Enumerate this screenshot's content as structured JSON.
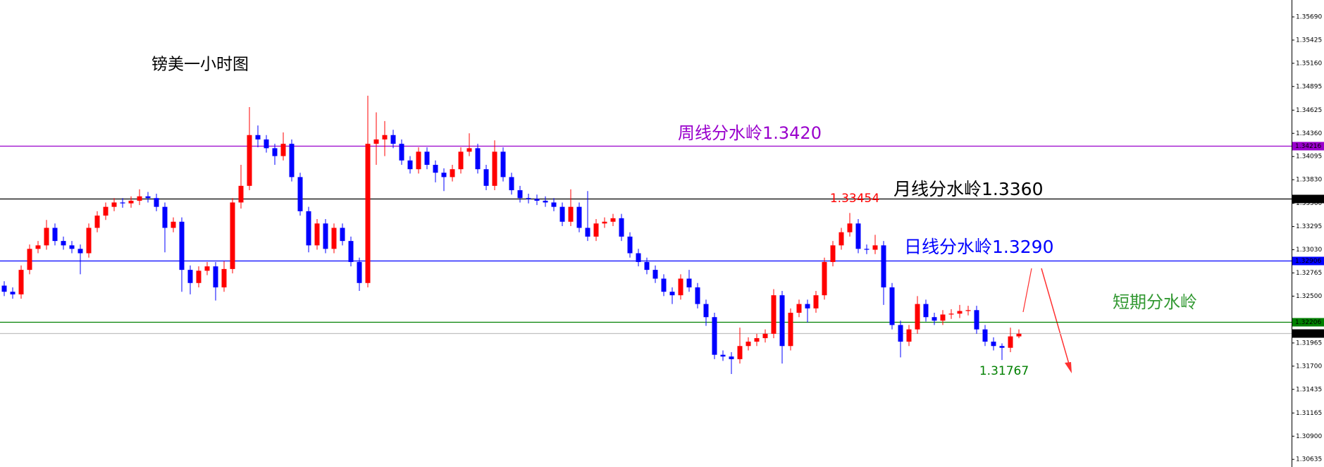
{
  "chart_data": {
    "type": "candlestick",
    "title": "镑美一小时图",
    "up_color": "#ff0000",
    "down_color": "#0000ff",
    "ylim": [
      1.30548,
      1.35883
    ],
    "yticks": [
      {
        "value": 1.3569,
        "label": "1.35690"
      },
      1.35425,
      {
        "value": 1.3516,
        "label": "1.35160"
      },
      1.34895,
      1.34625,
      {
        "value": 1.3436,
        "label": "1.34360"
      },
      1.34095,
      {
        "value": 1.3383,
        "label": "1.33830"
      },
      {
        "value": 1.3356,
        "label": "1.33560"
      },
      1.33295,
      {
        "value": 1.3303,
        "label": "1.33030"
      },
      1.32765,
      {
        "value": 1.325,
        "label": "1.32500"
      },
      1.31965,
      {
        "value": 1.317,
        "label": "1.31700"
      },
      1.31435,
      1.31165,
      {
        "value": 1.309,
        "label": "1.30900"
      },
      1.30635
    ],
    "levels": [
      {
        "value": 1.34216,
        "color": "#9900cc"
      },
      {
        "value": 1.33612,
        "color": "#000000"
      },
      {
        "value": 1.32906,
        "color": "#0000ff"
      },
      {
        "value": 1.32206,
        "color": "#008000"
      },
      {
        "value": 1.32076,
        "color": "#c0c0c0"
      }
    ],
    "annotations": [
      {
        "text": "周线分水岭1.3420",
        "color": "#9900cc"
      },
      {
        "text": "月线分水岭1.3360",
        "color": "#000000"
      },
      {
        "text": "日线分水岭1.3290",
        "color": "#0000ff"
      },
      {
        "text": "短期分水岭",
        "color": "#339933"
      }
    ],
    "price_labels": [
      {
        "value": 1.33454,
        "color": "#ff0000"
      },
      {
        "value": 1.31767,
        "color": "#008000"
      }
    ],
    "open": [
      1.3262,
      1.3255,
      1.3252,
      1.328,
      1.3304,
      1.3308,
      1.3328,
      1.3313,
      1.3308,
      1.3304,
      1.3299,
      1.3328,
      1.3342,
      1.3352,
      1.3357,
      1.3356,
      1.3359,
      1.3364,
      1.3362,
      1.3352,
      1.3328,
      1.3335,
      1.328,
      1.3265,
      1.3279,
      1.3284,
      1.326,
      1.3281,
      1.3357,
      1.3376,
      1.3434,
      1.3429,
      1.3419,
      1.341,
      1.3424,
      1.3386,
      1.3347,
      1.3308,
      1.3333,
      1.3304,
      1.3328,
      1.3313,
      1.3289,
      1.3265,
      1.3424,
      1.3429,
      1.3434,
      1.3424,
      1.3405,
      1.3395,
      1.3415,
      1.34,
      1.3391,
      1.3386,
      1.3395,
      1.3415,
      1.3419,
      1.3395,
      1.3376,
      1.3415,
      1.3386,
      1.3371,
      1.3362,
      1.3361,
      1.3359,
      1.3357,
      1.3352,
      1.3335,
      1.3352,
      1.3328,
      1.3318,
      1.3333,
      1.3335,
      1.3339,
      1.3318,
      1.3299,
      1.3289,
      1.328,
      1.327,
      1.3255,
      1.3251,
      1.327,
      1.326,
      1.3241,
      1.3226,
      1.3183,
      1.3181,
      1.3178,
      1.3193,
      1.3198,
      1.3202,
      1.3207,
      1.3251,
      1.3193,
      1.3231,
      1.3241,
      1.3236,
      1.3251,
      1.3289,
      1.3308,
      1.3323,
      1.3333,
      1.3304,
      1.3303,
      1.3308,
      1.326,
      1.3217,
      1.3198,
      1.3212,
      1.3241,
      1.3226,
      1.3222,
      1.3229,
      1.323,
      1.3233,
      1.3234,
      1.3212,
      1.3198,
      1.3193,
      1.3191,
      1.3204
    ],
    "high": [
      1.3267,
      1.326,
      1.3285,
      1.3309,
      1.3313,
      1.3337,
      1.3333,
      1.3318,
      1.3313,
      1.3309,
      1.3333,
      1.3347,
      1.3357,
      1.3362,
      1.3362,
      1.3364,
      1.3372,
      1.3369,
      1.3367,
      1.3357,
      1.334,
      1.334,
      1.3285,
      1.3284,
      1.3289,
      1.3289,
      1.329,
      1.3362,
      1.34,
      1.3466,
      1.3445,
      1.3434,
      1.3424,
      1.3437,
      1.3429,
      1.3391,
      1.3352,
      1.3338,
      1.3338,
      1.3333,
      1.3333,
      1.3318,
      1.3294,
      1.3479,
      1.346,
      1.345,
      1.344,
      1.3429,
      1.341,
      1.342,
      1.342,
      1.3405,
      1.3396,
      1.34,
      1.342,
      1.3436,
      1.3424,
      1.34,
      1.3428,
      1.342,
      1.3391,
      1.3376,
      1.3367,
      1.3366,
      1.3364,
      1.3362,
      1.3357,
      1.3372,
      1.3357,
      1.337,
      1.3338,
      1.334,
      1.3344,
      1.3344,
      1.3323,
      1.3304,
      1.3294,
      1.3285,
      1.3275,
      1.326,
      1.3275,
      1.328,
      1.3265,
      1.3246,
      1.3231,
      1.3188,
      1.3186,
      1.3214,
      1.3203,
      1.3207,
      1.3212,
      1.3258,
      1.3256,
      1.3236,
      1.3246,
      1.3246,
      1.3256,
      1.3294,
      1.3313,
      1.3328,
      1.3345,
      1.3338,
      1.3309,
      1.332,
      1.3313,
      1.3265,
      1.3222,
      1.3217,
      1.325,
      1.3246,
      1.3231,
      1.3234,
      1.3235,
      1.324,
      1.3239,
      1.3239,
      1.3217,
      1.3203,
      1.3196,
      1.3214,
      1.3212
    ],
    "low": [
      1.325,
      1.3247,
      1.3247,
      1.3275,
      1.3299,
      1.3303,
      1.3308,
      1.3303,
      1.3299,
      1.3275,
      1.3294,
      1.3323,
      1.3337,
      1.3347,
      1.3351,
      1.3351,
      1.3354,
      1.3357,
      1.3347,
      1.33,
      1.3323,
      1.3255,
      1.3252,
      1.326,
      1.3274,
      1.3245,
      1.3255,
      1.3276,
      1.335,
      1.3371,
      1.342,
      1.3414,
      1.34,
      1.3405,
      1.3381,
      1.3342,
      1.33,
      1.3303,
      1.3299,
      1.3299,
      1.3308,
      1.3284,
      1.3256,
      1.326,
      1.34,
      1.341,
      1.3419,
      1.34,
      1.339,
      1.339,
      1.3395,
      1.338,
      1.337,
      1.3381,
      1.339,
      1.341,
      1.339,
      1.3371,
      1.3371,
      1.3381,
      1.3366,
      1.3357,
      1.3356,
      1.3354,
      1.3352,
      1.3347,
      1.333,
      1.333,
      1.3323,
      1.3313,
      1.3313,
      1.3328,
      1.333,
      1.3313,
      1.3294,
      1.3284,
      1.3275,
      1.3265,
      1.325,
      1.3241,
      1.3246,
      1.3255,
      1.3236,
      1.3216,
      1.3178,
      1.3176,
      1.3161,
      1.3173,
      1.3188,
      1.3193,
      1.3197,
      1.3202,
      1.3173,
      1.3188,
      1.3226,
      1.322,
      1.3231,
      1.3246,
      1.3284,
      1.3303,
      1.3318,
      1.3299,
      1.3298,
      1.3298,
      1.324,
      1.3212,
      1.318,
      1.3193,
      1.3207,
      1.3221,
      1.3217,
      1.3217,
      1.3224,
      1.3225,
      1.3228,
      1.3207,
      1.3193,
      1.3188,
      1.3177,
      1.3186,
      1.3202
    ],
    "close": [
      1.3255,
      1.3252,
      1.328,
      1.3304,
      1.3308,
      1.3328,
      1.3313,
      1.3308,
      1.3304,
      1.3299,
      1.3328,
      1.3342,
      1.3352,
      1.3357,
      1.3356,
      1.3359,
      1.3364,
      1.3362,
      1.3352,
      1.3328,
      1.3335,
      1.328,
      1.3265,
      1.3279,
      1.3284,
      1.326,
      1.3281,
      1.3357,
      1.3376,
      1.3434,
      1.3429,
      1.3419,
      1.341,
      1.3424,
      1.3386,
      1.3347,
      1.3308,
      1.3333,
      1.3304,
      1.3328,
      1.3313,
      1.3289,
      1.3265,
      1.3424,
      1.3429,
      1.3434,
      1.3424,
      1.3405,
      1.3395,
      1.3415,
      1.34,
      1.3391,
      1.3386,
      1.3395,
      1.3415,
      1.3419,
      1.3395,
      1.3376,
      1.3415,
      1.3386,
      1.3371,
      1.3362,
      1.3361,
      1.3359,
      1.3357,
      1.3352,
      1.3335,
      1.3352,
      1.3328,
      1.3318,
      1.3333,
      1.3335,
      1.3339,
      1.3318,
      1.3299,
      1.3289,
      1.328,
      1.327,
      1.3255,
      1.3251,
      1.327,
      1.326,
      1.3241,
      1.3226,
      1.3183,
      1.3181,
      1.3178,
      1.3193,
      1.3198,
      1.3202,
      1.3207,
      1.3251,
      1.3193,
      1.3231,
      1.3241,
      1.3236,
      1.3251,
      1.3289,
      1.3308,
      1.3323,
      1.3333,
      1.3304,
      1.3303,
      1.3308,
      1.326,
      1.3217,
      1.3198,
      1.3212,
      1.3241,
      1.3226,
      1.3222,
      1.3229,
      1.323,
      1.3233,
      1.3234,
      1.3212,
      1.3198,
      1.3193,
      1.3191,
      1.3204,
      1.3207
    ]
  }
}
